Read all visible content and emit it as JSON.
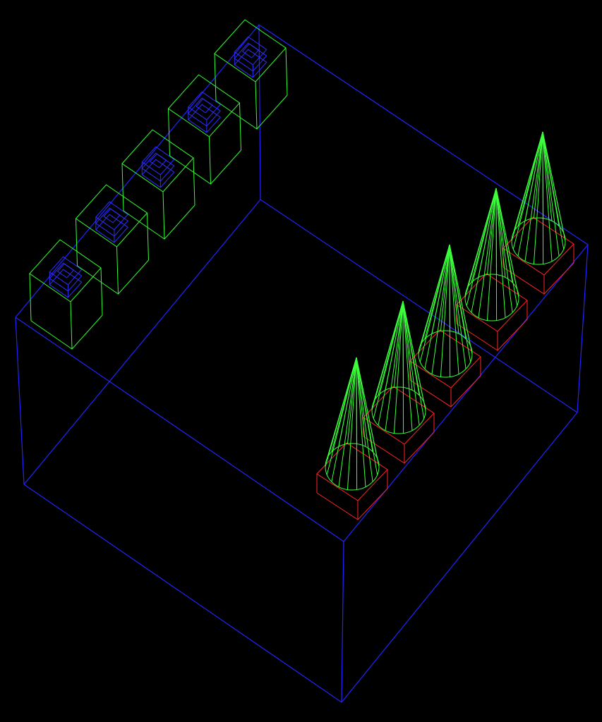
{
  "viewport": {
    "background": "#000000"
  },
  "colors": {
    "container_box": "#2323ff",
    "green_box": "#31ff31",
    "blue_module": "#2e2eff",
    "red_base": "#ff2424",
    "cone": "#3cff3c"
  },
  "scene": {
    "render_style": "wireframe",
    "container_box_count": 1,
    "green_box_count": 5,
    "cone_count": 5,
    "red_base_count": 5
  }
}
